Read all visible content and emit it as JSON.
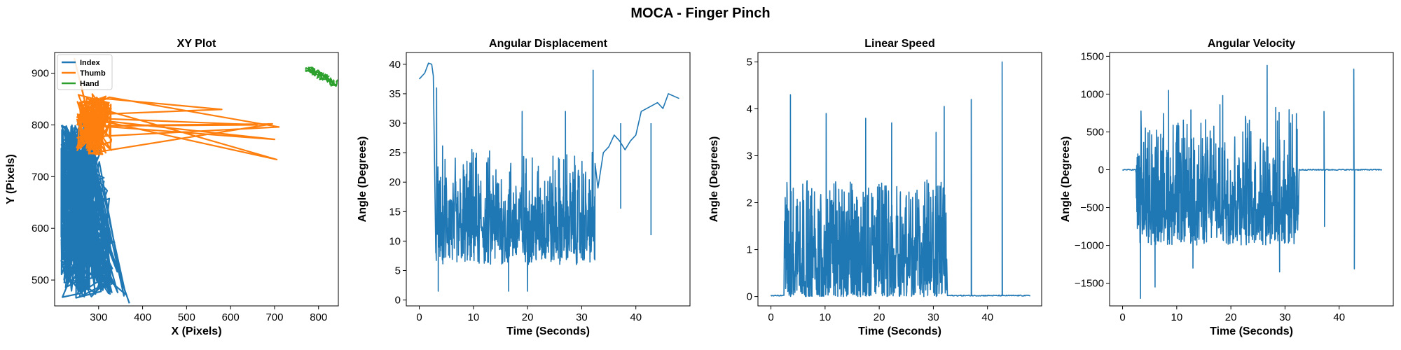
{
  "figure": {
    "suptitle": "MOCA - Finger Pinch"
  },
  "colors": {
    "index": "#1f77b4",
    "thumb": "#ff7f0e",
    "hand": "#2ca02c"
  },
  "chart_data": [
    {
      "type": "line",
      "title": "XY Plot",
      "xlabel": "X (Pixels)",
      "ylabel": "Y (Pixels)",
      "xlim": [
        200,
        845
      ],
      "ylim": [
        450,
        940
      ],
      "xticks": [
        300,
        400,
        500,
        600,
        700,
        800
      ],
      "yticks": [
        500,
        600,
        700,
        800,
        900
      ],
      "legend": {
        "position": "top-left",
        "entries": [
          "Index",
          "Thumb",
          "Hand"
        ]
      },
      "series": [
        {
          "name": "Index",
          "color": "#1f77b4",
          "style": "trajectory",
          "x_range": [
            215,
            370
          ],
          "y_range": [
            455,
            830
          ]
        },
        {
          "name": "Thumb",
          "color": "#ff7f0e",
          "style": "trajectory",
          "x_range": [
            240,
            710
          ],
          "y_range": [
            732,
            930
          ],
          "spikes": [
            [
              580,
              830
            ],
            [
              695,
              802
            ],
            [
              710,
              796
            ],
            [
              700,
              772
            ],
            [
              705,
              733
            ],
            [
              660,
              800
            ]
          ]
        },
        {
          "name": "Hand",
          "color": "#2ca02c",
          "style": "cluster",
          "x_range": [
            768,
            838
          ],
          "y_range": [
            875,
            915
          ]
        }
      ]
    },
    {
      "type": "line",
      "title": "Angular Displacement",
      "xlabel": "Time (Seconds)",
      "ylabel": "Angle (Degrees)",
      "xlim": [
        -2.4,
        50
      ],
      "ylim": [
        -1,
        42
      ],
      "xticks": [
        0,
        10,
        20,
        30,
        40
      ],
      "yticks": [
        0,
        5,
        10,
        15,
        20,
        25,
        30,
        35,
        40
      ],
      "series": [
        {
          "color": "#1f77b4",
          "baseline": [
            [
              0,
              37.5
            ],
            [
              1,
              38.5
            ],
            [
              1.7,
              40.2
            ],
            [
              2.3,
              40
            ],
            [
              2.6,
              38
            ]
          ],
          "noisy_band": {
            "x": [
              3,
              32.5
            ],
            "low": 6,
            "high": 27
          },
          "tail": [
            [
              33,
              19
            ],
            [
              34,
              25
            ],
            [
              35,
              26
            ],
            [
              36,
              28
            ],
            [
              37,
              27
            ],
            [
              38,
              25.5
            ],
            [
              39,
              27
            ],
            [
              40,
              28
            ],
            [
              41,
              32
            ],
            [
              43,
              33
            ],
            [
              44,
              33.5
            ],
            [
              45,
              32.5
            ],
            [
              46,
              35
            ],
            [
              48,
              34.2
            ]
          ],
          "spikes": [
            [
              3.2,
              36
            ],
            [
              3.5,
              1.5
            ],
            [
              16.5,
              1.5
            ],
            [
              19,
              32
            ],
            [
              20,
              1.5
            ],
            [
              27,
              32
            ],
            [
              32.1,
              39
            ],
            [
              37.2,
              15.5
            ],
            [
              42.8,
              11
            ]
          ]
        }
      ]
    },
    {
      "type": "line",
      "title": "Linear Speed",
      "xlabel": "Time (Seconds)",
      "ylabel": "Angle (Degrees)",
      "xlim": [
        -2.4,
        50
      ],
      "ylim": [
        -0.2,
        5.2
      ],
      "xticks": [
        0,
        10,
        20,
        30,
        40
      ],
      "yticks": [
        0,
        1,
        2,
        3,
        4,
        5
      ],
      "series": [
        {
          "color": "#1f77b4",
          "noisy_band": {
            "x": [
              2.5,
              32.5
            ],
            "low": 0,
            "high": 2.5
          },
          "baseline_value": 0.02,
          "spikes": [
            [
              3.6,
              4.3
            ],
            [
              10.2,
              3.9
            ],
            [
              17.5,
              3.8
            ],
            [
              22.3,
              3.7
            ],
            [
              30.5,
              3.5
            ],
            [
              32,
              4.05
            ],
            [
              37,
              4.2
            ],
            [
              42.7,
              5.0
            ]
          ]
        }
      ]
    },
    {
      "type": "line",
      "title": "Angular Velocity",
      "xlabel": "Time (Seconds)",
      "ylabel": "Angle (Degrees)",
      "xlim": [
        -2.4,
        50
      ],
      "ylim": [
        -1800,
        1550
      ],
      "xticks": [
        0,
        10,
        20,
        30,
        40
      ],
      "yticks": [
        -1500,
        -1000,
        -500,
        0,
        500,
        1000,
        1500
      ],
      "series": [
        {
          "color": "#1f77b4",
          "noisy_band": {
            "x": [
              2.5,
              32.5
            ],
            "low": -1000,
            "high": 900
          },
          "baseline_value": 0,
          "spikes": [
            [
              3.3,
              -1700
            ],
            [
              6,
              -1550
            ],
            [
              8.5,
              1050
            ],
            [
              13,
              -1300
            ],
            [
              18.5,
              980
            ],
            [
              26.7,
              1380
            ],
            [
              29,
              -1350
            ],
            [
              37.2,
              770
            ],
            [
              37.3,
              -750
            ],
            [
              42.7,
              1330
            ],
            [
              42.8,
              -1310
            ]
          ]
        }
      ]
    }
  ]
}
